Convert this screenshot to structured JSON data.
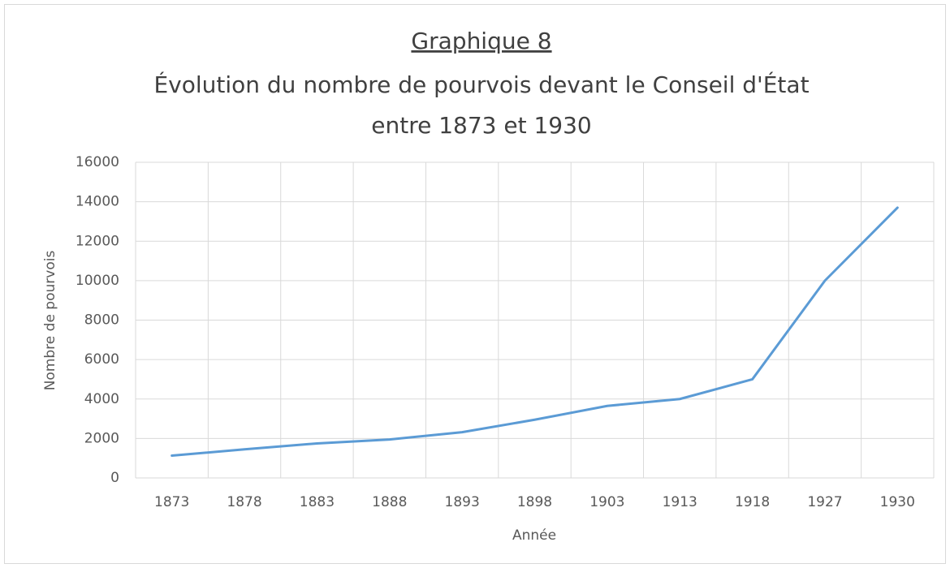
{
  "chart_data": {
    "type": "line",
    "title": "Graphique 8",
    "subtitle": [
      "Évolution du nombre de pourvois devant le Conseil d'État",
      "entre 1873 et 1930"
    ],
    "x_label": "Année",
    "y_label": "Nombre de pourvois",
    "categories": [
      "1873",
      "1878",
      "1883",
      "1888",
      "1893",
      "1898",
      "1903",
      "1913",
      "1918",
      "1927",
      "1930"
    ],
    "series": [
      {
        "name": "Nombre de pourvois",
        "color": "#5b9bd5",
        "values": [
          1130,
          1450,
          1750,
          1950,
          2320,
          2950,
          3650,
          4000,
          5000,
          10000,
          13700
        ]
      }
    ],
    "ylim": [
      0,
      16000
    ],
    "yticks": [
      0,
      2000,
      4000,
      6000,
      8000,
      10000,
      12000,
      14000,
      16000
    ],
    "grid": true
  }
}
